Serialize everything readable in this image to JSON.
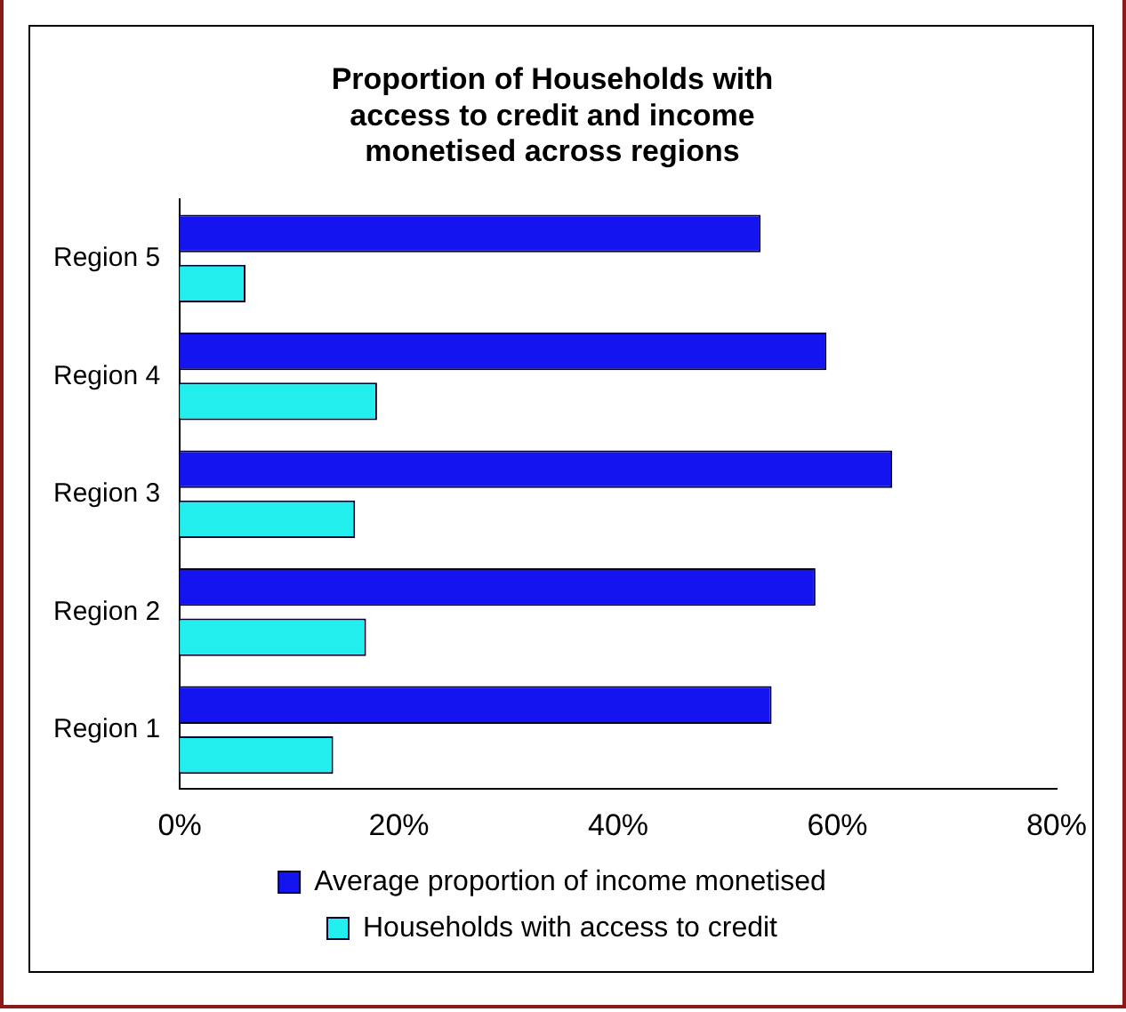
{
  "chart_data": {
    "type": "bar",
    "orientation": "horizontal",
    "title": [
      "Proportion of Households with",
      "access to credit and income",
      "monetised across regions"
    ],
    "categories": [
      "Region 5",
      "Region 4",
      "Region 3",
      "Region 2",
      "Region 1"
    ],
    "series": [
      {
        "name": "Average proportion of income monetised",
        "color": "#1414f0",
        "values": [
          53,
          59,
          65,
          58,
          54
        ]
      },
      {
        "name": "Households with access to credit",
        "color": "#22eeee",
        "values": [
          6,
          18,
          16,
          17,
          14
        ]
      }
    ],
    "xlim": [
      0,
      80
    ],
    "xticks": [
      {
        "value": 0,
        "label": "0%"
      },
      {
        "value": 20,
        "label": "20%"
      },
      {
        "value": 40,
        "label": "40%"
      },
      {
        "value": 60,
        "label": "60%"
      },
      {
        "value": 80,
        "label": "80%"
      }
    ],
    "grid": false,
    "legend": "bottom"
  }
}
